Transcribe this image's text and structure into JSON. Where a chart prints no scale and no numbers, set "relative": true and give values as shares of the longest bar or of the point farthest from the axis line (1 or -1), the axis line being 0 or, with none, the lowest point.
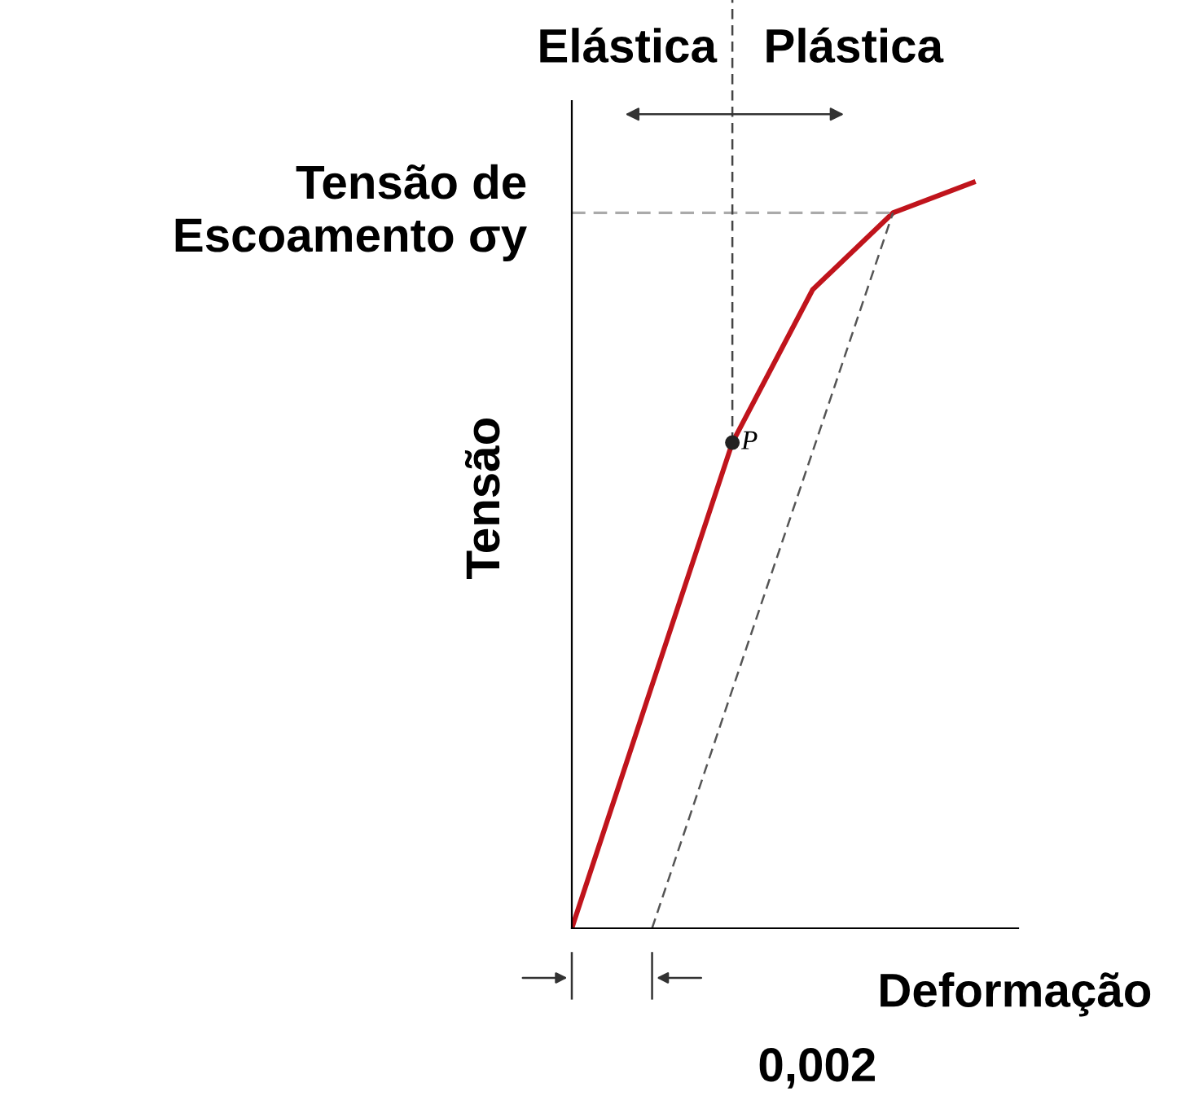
{
  "chart_data": {
    "type": "line",
    "relative": true,
    "xlabel": "Deformação",
    "ylabel": "Tensão",
    "categories": [
      null,
      null,
      null,
      null,
      null,
      null
    ],
    "series": [
      {
        "color": "#c0141c",
        "values": [
          0,
          0.326,
          0.651,
          0.856,
          0.959,
          1
        ]
      },
      {
        "color": "#555555",
        "line_style": "dashed",
        "values": [
          null,
          0,
          0.32,
          0.639,
          0.959,
          null
        ]
      }
    ],
    "ref_lines": [
      {
        "axis": "y",
        "value": 0.959,
        "label": "Tensão de\nEscoamento σy",
        "color": "#aaaaaa",
        "line_style": "dashed"
      }
    ],
    "annotations": [
      "Elástica",
      "Plástica",
      "0,002",
      "P"
    ]
  }
}
